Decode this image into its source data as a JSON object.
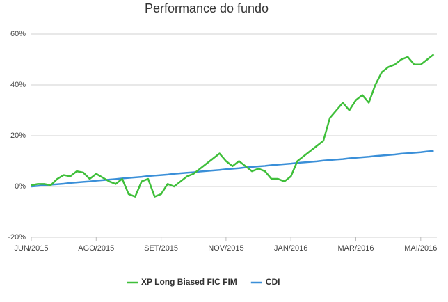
{
  "chart_data": {
    "type": "line",
    "title": "Performance do fundo",
    "categories": [
      "JUN/2015",
      null,
      null,
      null,
      null,
      null,
      null,
      null,
      null,
      null,
      "AGO/2015",
      null,
      null,
      null,
      null,
      null,
      null,
      null,
      null,
      null,
      "SET/2015",
      null,
      null,
      null,
      null,
      null,
      null,
      null,
      null,
      null,
      "NOV/2015",
      null,
      null,
      null,
      null,
      null,
      null,
      null,
      null,
      null,
      "JAN/2016",
      null,
      null,
      null,
      null,
      null,
      null,
      null,
      null,
      null,
      "MAR/2016",
      null,
      null,
      null,
      null,
      null,
      null,
      null,
      null,
      null,
      "MAI/2016",
      null,
      null
    ],
    "series": [
      {
        "name": "XP Long Biased FIC FIM",
        "color": "#3fbf3a",
        "values": [
          0.5,
          1,
          1,
          0.5,
          3,
          4.5,
          4,
          6,
          5.5,
          3,
          5,
          3.5,
          2,
          1,
          3,
          -3,
          -4,
          2,
          3,
          -4,
          -3,
          1,
          0,
          2,
          4,
          5,
          7,
          9,
          11,
          13,
          10,
          8,
          10,
          8,
          6,
          7,
          6,
          3,
          3,
          2,
          4,
          10,
          12,
          14,
          16,
          18,
          27,
          30,
          33,
          30,
          34,
          36,
          33,
          40,
          45,
          47,
          48,
          50,
          51,
          48,
          48,
          50,
          52
        ]
      },
      {
        "name": "CDI",
        "color": "#3a8fd8",
        "values": [
          0,
          0.2,
          0.5,
          0.7,
          0.9,
          1.1,
          1.4,
          1.6,
          1.8,
          2,
          2.3,
          2.5,
          2.7,
          2.9,
          3.2,
          3.4,
          3.6,
          3.8,
          4.1,
          4.3,
          4.5,
          4.7,
          5,
          5.2,
          5.4,
          5.6,
          5.9,
          6.1,
          6.3,
          6.5,
          6.8,
          7,
          7.2,
          7.5,
          7.7,
          7.9,
          8.1,
          8.4,
          8.6,
          8.8,
          9,
          9.3,
          9.5,
          9.7,
          9.9,
          10.2,
          10.4,
          10.6,
          10.8,
          11.1,
          11.3,
          11.5,
          11.7,
          12,
          12.2,
          12.4,
          12.6,
          12.9,
          13.1,
          13.3,
          13.5,
          13.8,
          14
        ]
      }
    ],
    "ylim": [
      -20,
      60
    ],
    "yticks": [
      {
        "value": -20,
        "label": "-20%"
      },
      {
        "value": 0,
        "label": "0%"
      },
      {
        "value": 20,
        "label": "20%"
      },
      {
        "value": 40,
        "label": "40%"
      },
      {
        "value": 60,
        "label": "60%"
      }
    ],
    "grid": true,
    "legend": "bottom"
  }
}
